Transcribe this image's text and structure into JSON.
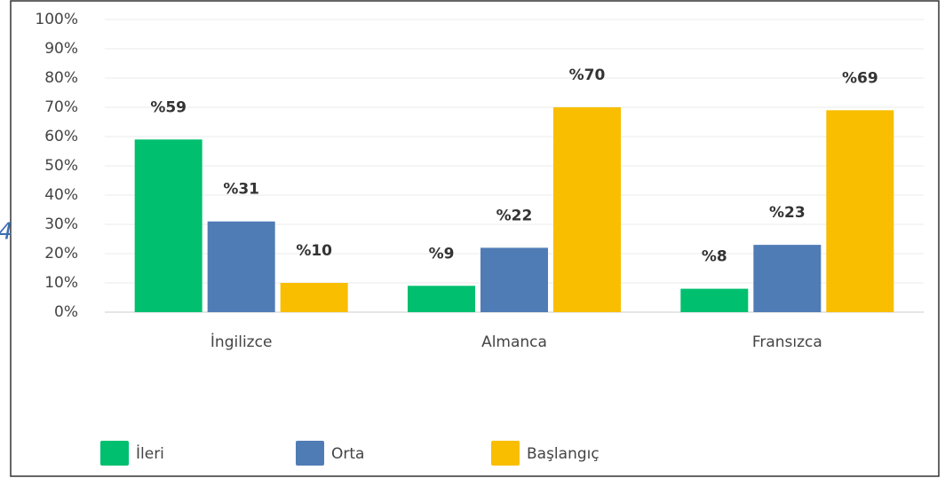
{
  "chart_data": {
    "type": "bar",
    "annotations": [
      "4"
    ],
    "categories": [
      "İngilizce",
      "Almanca",
      "Fransızca"
    ],
    "series": [
      {
        "name": "İleri",
        "color": "#00bf6f",
        "values": [
          59,
          9,
          8
        ],
        "value_labels": [
          "%59",
          "%9",
          "%8"
        ]
      },
      {
        "name": "Orta",
        "color": "#507cb6",
        "values": [
          31,
          22,
          23
        ],
        "value_labels": [
          "%31",
          "%22",
          "%23"
        ]
      },
      {
        "name": "Başlangıç",
        "color": "#f9be00",
        "values": [
          10,
          70,
          69
        ],
        "value_labels": [
          "%10",
          "%70",
          "%69"
        ]
      }
    ],
    "ylim": [
      0,
      100
    ],
    "yticks": [
      {
        "value": 0,
        "label": "0%"
      },
      {
        "value": 10,
        "label": "10%"
      },
      {
        "value": 20,
        "label": "20%"
      },
      {
        "value": 30,
        "label": "30%"
      },
      {
        "value": 40,
        "label": "40%"
      },
      {
        "value": 50,
        "label": "50%"
      },
      {
        "value": 60,
        "label": "60%"
      },
      {
        "value": 70,
        "label": "70%"
      },
      {
        "value": 80,
        "label": "80%"
      },
      {
        "value": 90,
        "label": "90%"
      },
      {
        "value": 100,
        "label": "100%"
      }
    ],
    "grid": true,
    "legend": "bottom-left"
  }
}
